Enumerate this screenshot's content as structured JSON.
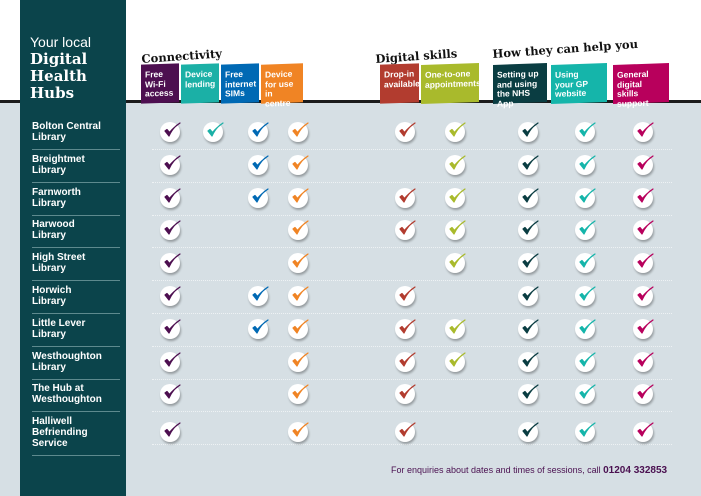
{
  "title": {
    "small": "Your local",
    "big": [
      "Digital",
      "Health",
      "Hubs"
    ]
  },
  "groups": [
    "Connectivity",
    "Digital skills",
    "How they can help you"
  ],
  "columns": [
    {
      "label": [
        "Free",
        "Wi-Fi",
        "access"
      ],
      "color": "#4d0f50"
    },
    {
      "label": [
        "Device",
        "lending"
      ],
      "color": "#1bb0a6"
    },
    {
      "label": [
        "Free",
        "internet",
        "SIMs"
      ],
      "color": "#0069b4"
    },
    {
      "label": [
        "Device",
        "for use",
        "in centre"
      ],
      "color": "#f08424"
    },
    {
      "label": [
        "Drop-in",
        "available"
      ],
      "color": "#b23c2f"
    },
    {
      "label": [
        "One-to-one",
        "appointments"
      ],
      "color": "#a9ba2c"
    },
    {
      "label": [
        "Setting up",
        "and using",
        "the NHS App"
      ],
      "color": "#0a3d42"
    },
    {
      "label": [
        "Using",
        "your GP",
        "website"
      ],
      "color": "#15b5aa"
    },
    {
      "label": [
        "General",
        "digital skills",
        "support"
      ],
      "color": "#b8005c"
    }
  ],
  "libraries": [
    {
      "name": [
        "Bolton Central",
        "Library"
      ],
      "checks": [
        1,
        1,
        1,
        1,
        1,
        1,
        1,
        1,
        1
      ]
    },
    {
      "name": [
        "Breightmet",
        "Library"
      ],
      "checks": [
        1,
        0,
        1,
        1,
        0,
        1,
        1,
        1,
        1
      ]
    },
    {
      "name": [
        "Farnworth",
        "Library"
      ],
      "checks": [
        1,
        0,
        1,
        1,
        1,
        1,
        1,
        1,
        1
      ]
    },
    {
      "name": [
        "Harwood",
        "Library"
      ],
      "checks": [
        1,
        0,
        0,
        1,
        1,
        1,
        1,
        1,
        1
      ]
    },
    {
      "name": [
        "High Street",
        "Library"
      ],
      "checks": [
        1,
        0,
        0,
        1,
        0,
        1,
        1,
        1,
        1
      ]
    },
    {
      "name": [
        "Horwich",
        "Library"
      ],
      "checks": [
        1,
        0,
        1,
        1,
        1,
        0,
        1,
        1,
        1
      ]
    },
    {
      "name": [
        "Little Lever",
        "Library"
      ],
      "checks": [
        1,
        0,
        1,
        1,
        1,
        1,
        1,
        1,
        1
      ]
    },
    {
      "name": [
        "Westhoughton",
        "Library"
      ],
      "checks": [
        1,
        0,
        0,
        1,
        1,
        1,
        1,
        1,
        1
      ]
    },
    {
      "name": [
        "The Hub at",
        "Westhoughton"
      ],
      "checks": [
        1,
        0,
        0,
        1,
        1,
        0,
        1,
        1,
        1
      ]
    },
    {
      "name": [
        "Halliwell",
        "Befriending",
        "Service"
      ],
      "checks": [
        1,
        0,
        0,
        1,
        1,
        0,
        1,
        1,
        1
      ]
    }
  ],
  "footer": {
    "text": "For enquiries about dates and times of sessions, call ",
    "phone": "01204 332853"
  }
}
